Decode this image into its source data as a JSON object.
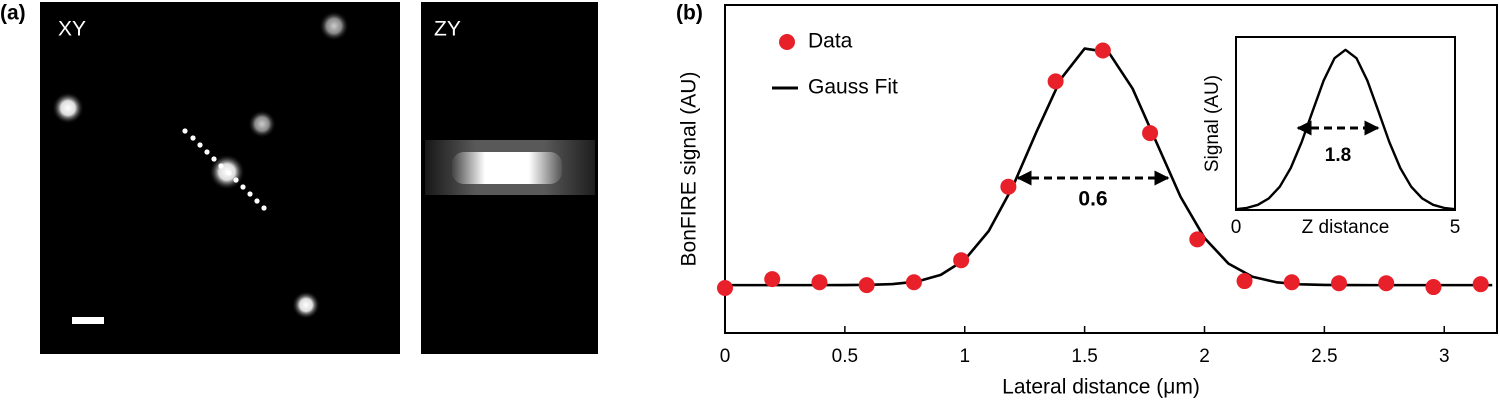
{
  "image_panel": {
    "label": "(a)",
    "views": [
      "XY",
      "ZY"
    ]
  },
  "chart_data": [
    {
      "type": "scatter",
      "panel_label": "(b)",
      "xlabel": "Lateral distance (μm)",
      "ylabel": "BonFIRE signal (AU)",
      "xlim": [
        0,
        3.22
      ],
      "xticks": [
        0,
        0.5,
        1,
        1.5,
        2,
        2.5,
        3
      ],
      "ylim": [
        -0.2,
        1.17
      ],
      "legend": "upper left",
      "series": [
        {
          "name": "Data",
          "type": "scatter",
          "color": "#e8202a",
          "x": [
            0,
            0.197,
            0.394,
            0.591,
            0.788,
            0.985,
            1.182,
            1.379,
            1.576,
            1.773,
            1.97,
            2.167,
            2.364,
            2.561,
            2.758,
            2.955,
            3.152
          ],
          "values": [
            -0.012,
            0.025,
            0.012,
            0,
            0.012,
            0.104,
            0.411,
            0.851,
            0.98,
            0.635,
            0.191,
            0.017,
            0.012,
            0.008,
            0.008,
            -0.008,
            0.004
          ]
        },
        {
          "name": "Gauss Fit",
          "type": "line",
          "color": "#000000",
          "x": [
            0,
            0.1,
            0.2,
            0.3,
            0.4,
            0.5,
            0.6,
            0.7,
            0.8,
            0.9,
            1,
            1.1,
            1.2,
            1.3,
            1.4,
            1.5,
            1.6,
            1.7,
            1.8,
            1.9,
            2,
            2.1,
            2.2,
            2.3,
            2.4,
            2.5,
            2.6,
            2.7,
            2.8,
            2.9,
            3,
            3.1,
            3.2
          ],
          "values": [
            0,
            0,
            0,
            0,
            0,
            0.0002,
            0.0011,
            0.0044,
            0.0148,
            0.0429,
            0.106,
            0.226,
            0.411,
            0.642,
            0.86,
            0.988,
            0.973,
            0.821,
            0.595,
            0.369,
            0.197,
            0.0897,
            0.0351,
            0.0118,
            0.0034,
            0.0008,
            0.0002,
            0,
            0,
            0,
            0,
            0,
            0
          ]
        }
      ],
      "annotations": [
        {
          "text": "0.6"
        }
      ]
    },
    {
      "type": "line",
      "xlabel": "Z distance",
      "ylabel": "Signal (AU)",
      "xlim": [
        0,
        5
      ],
      "xticks": [
        0,
        5
      ],
      "ylim": [
        0,
        1.08
      ],
      "series": [
        {
          "type": "line",
          "color": "#000000",
          "x": [
            0,
            0.25,
            0.5,
            0.75,
            1,
            1.25,
            1.5,
            1.75,
            2,
            2.25,
            2.5,
            2.75,
            3,
            3.25,
            3.5,
            3.75,
            4,
            4.25,
            4.5,
            4.75,
            5
          ],
          "values": [
            0.0047,
            0.0131,
            0.0325,
            0.0726,
            0.1456,
            0.2623,
            0.4246,
            0.6177,
            0.8072,
            0.9479,
            1,
            0.9479,
            0.8072,
            0.6177,
            0.4246,
            0.2623,
            0.1456,
            0.0726,
            0.0325,
            0.0131,
            0.0047
          ]
        }
      ],
      "annotations": [
        {
          "text": "1.8"
        }
      ]
    }
  ]
}
